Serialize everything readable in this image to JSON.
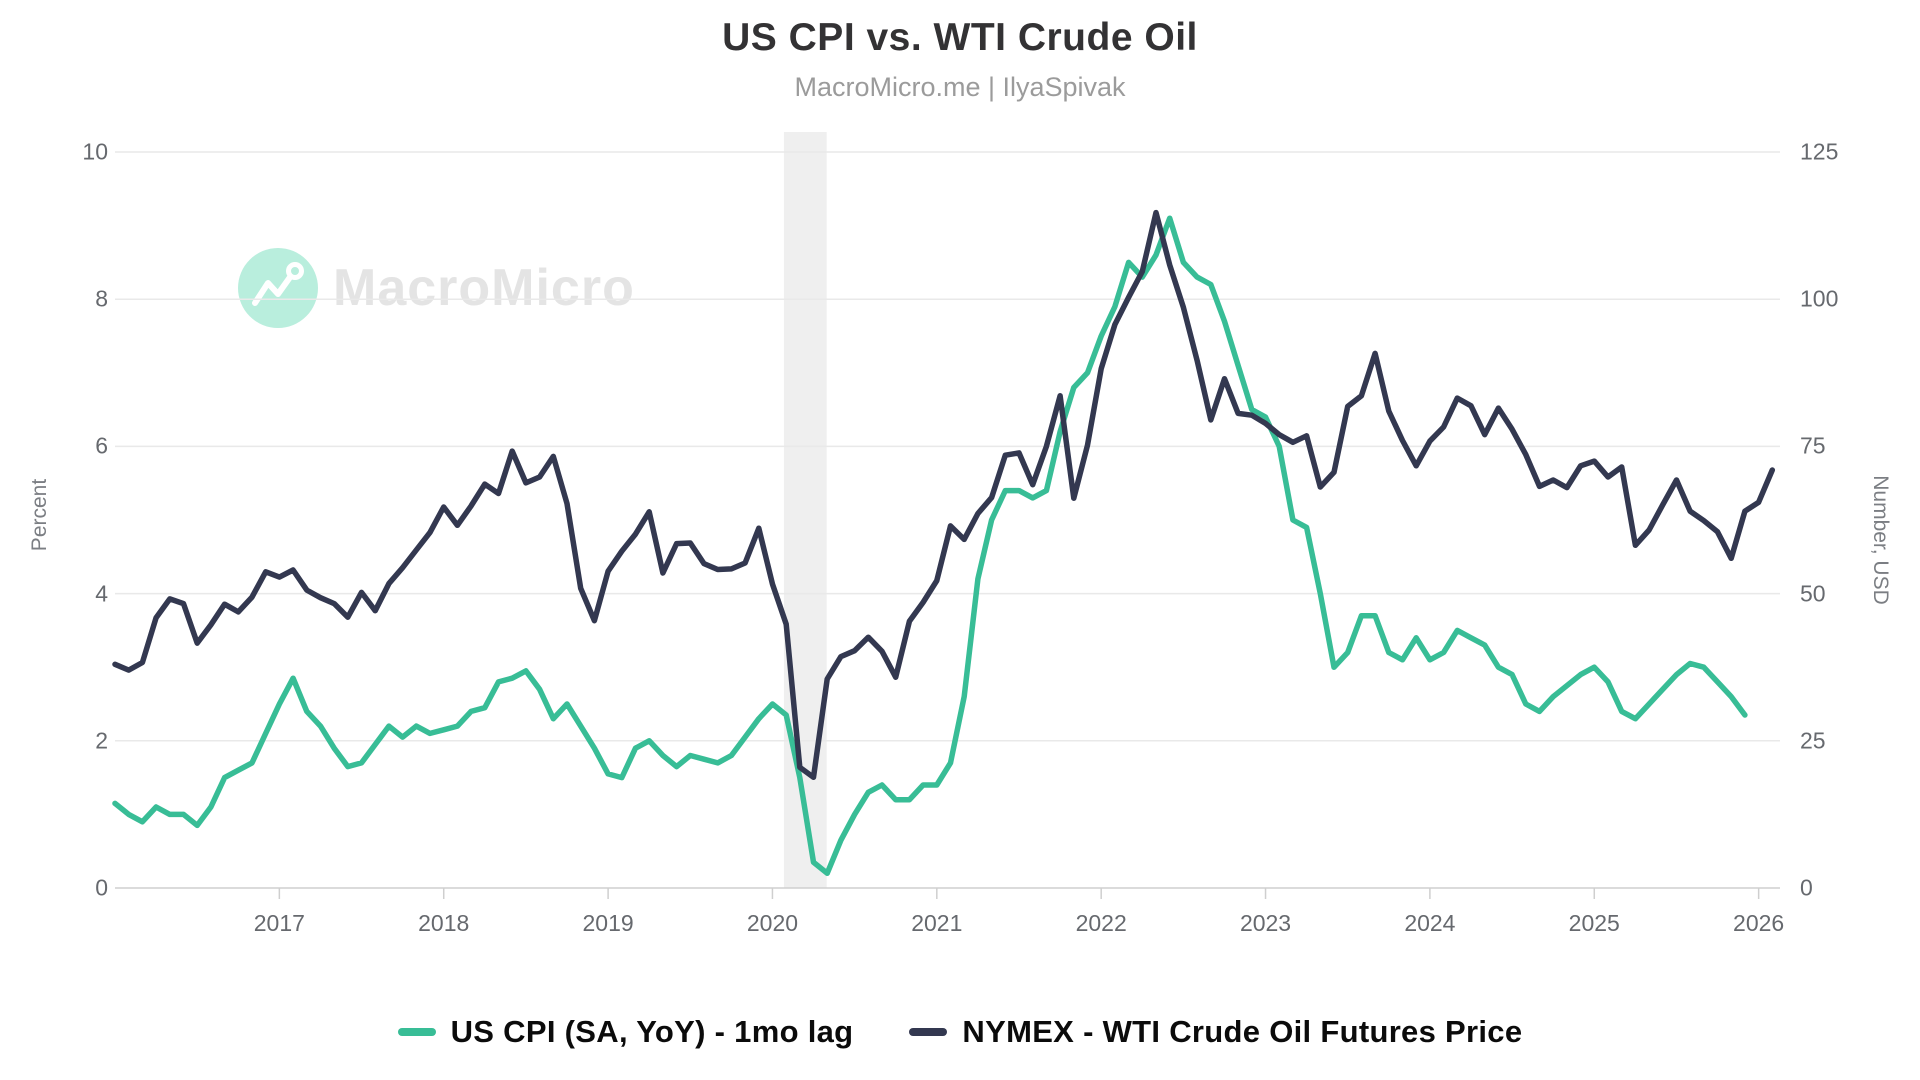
{
  "watermark": {
    "text": "MacroMicro",
    "icon": "macromicro-logo-icon",
    "circle_color": "#b9eedd",
    "glyph_color": "#ffffff",
    "text_color": "#e4e4e4"
  },
  "chart_data": {
    "type": "line",
    "title": "US CPI vs. WTI Crude Oil",
    "subtitle": "MacroMicro.me | IlyaSpivak",
    "grid": "horizontal-only",
    "legend_position": "bottom-center",
    "background_color": "#ffffff",
    "gridline_color": "#e9e9e9",
    "baseline_color": "#cfcfcf",
    "tick_text_color": "#66696e",
    "x_range": [
      2016.0,
      2026.13
    ],
    "x_ticks": [
      {
        "label": "2017",
        "value": 2017
      },
      {
        "label": "2018",
        "value": 2018
      },
      {
        "label": "2019",
        "value": 2019
      },
      {
        "label": "2020",
        "value": 2020
      },
      {
        "label": "2021",
        "value": 2021
      },
      {
        "label": "2022",
        "value": 2022
      },
      {
        "label": "2023",
        "value": 2023
      },
      {
        "label": "2024",
        "value": 2024
      },
      {
        "label": "2025",
        "value": 2025
      },
      {
        "label": "2026",
        "value": 2026
      }
    ],
    "left_axis": {
      "title": "Percent",
      "min": 0,
      "max": 10,
      "ticks": [
        {
          "label": "0",
          "value": 0
        },
        {
          "label": "2",
          "value": 2
        },
        {
          "label": "4",
          "value": 4
        },
        {
          "label": "6",
          "value": 6
        },
        {
          "label": "8",
          "value": 8
        },
        {
          "label": "10",
          "value": 10
        }
      ]
    },
    "right_axis": {
      "title": "Number, USD",
      "min": 0,
      "max": 125,
      "ticks": [
        {
          "label": "0",
          "value": 0
        },
        {
          "label": "25",
          "value": 25
        },
        {
          "label": "50",
          "value": 50
        },
        {
          "label": "75",
          "value": 75
        },
        {
          "label": "100",
          "value": 100
        },
        {
          "label": "125",
          "value": 125
        }
      ]
    },
    "recession_band": {
      "start": 2020.07,
      "end": 2020.33,
      "color": "#efefef"
    },
    "series": [
      {
        "name": "US CPI (SA, YoY) - 1mo lag",
        "color": "#38bd96",
        "axis": "left",
        "unit": "%",
        "x_start": 2016.0,
        "x_step": 0.08333333,
        "values": [
          1.15,
          1.0,
          0.9,
          1.1,
          1.0,
          1.0,
          0.85,
          1.1,
          1.5,
          1.6,
          1.7,
          2.1,
          2.5,
          2.85,
          2.4,
          2.2,
          1.9,
          1.65,
          1.7,
          1.95,
          2.2,
          2.05,
          2.2,
          2.1,
          2.15,
          2.2,
          2.4,
          2.45,
          2.8,
          2.85,
          2.95,
          2.7,
          2.3,
          2.5,
          2.2,
          1.9,
          1.55,
          1.5,
          1.9,
          2.0,
          1.8,
          1.65,
          1.8,
          1.75,
          1.7,
          1.8,
          2.05,
          2.3,
          2.5,
          2.35,
          1.5,
          0.35,
          0.2,
          0.65,
          1.0,
          1.3,
          1.4,
          1.2,
          1.2,
          1.4,
          1.4,
          1.7,
          2.6,
          4.2,
          5.0,
          5.4,
          5.4,
          5.3,
          5.4,
          6.2,
          6.8,
          7.0,
          7.5,
          7.9,
          8.5,
          8.3,
          8.6,
          9.1,
          8.5,
          8.3,
          8.2,
          7.7,
          7.1,
          6.5,
          6.4,
          6.0,
          5.0,
          4.9,
          4.0,
          3.0,
          3.2,
          3.7,
          3.7,
          3.2,
          3.1,
          3.4,
          3.1,
          3.2,
          3.5,
          3.4,
          3.3,
          3.0,
          2.9,
          2.5,
          2.4,
          2.6,
          2.75,
          2.9,
          3.0,
          2.8,
          2.4,
          2.3,
          2.5,
          2.7,
          2.9,
          3.05,
          3.0,
          2.8,
          2.6,
          2.35
        ]
      },
      {
        "name": "NYMEX - WTI Crude Oil Futures Price",
        "color": "#333850",
        "axis": "right",
        "unit": "USD",
        "x_start": 2016.0,
        "x_step": 0.08333333,
        "values": [
          38.0,
          37.0,
          38.3,
          45.9,
          49.1,
          48.3,
          41.6,
          44.7,
          48.2,
          46.9,
          49.4,
          53.7,
          52.8,
          54.0,
          50.6,
          49.3,
          48.3,
          46.0,
          50.2,
          47.1,
          51.7,
          54.4,
          57.4,
          60.4,
          64.7,
          61.6,
          64.9,
          68.6,
          67.0,
          74.2,
          68.8,
          69.8,
          73.3,
          65.3,
          50.9,
          45.4,
          53.8,
          57.2,
          60.1,
          63.9,
          53.5,
          58.5,
          58.6,
          55.1,
          54.1,
          54.2,
          55.2,
          61.1,
          51.6,
          44.8,
          20.5,
          18.8,
          35.5,
          39.3,
          40.3,
          42.6,
          40.2,
          35.8,
          45.3,
          48.5,
          52.2,
          61.5,
          59.2,
          63.6,
          66.3,
          73.5,
          73.9,
          68.5,
          75.0,
          83.6,
          66.2,
          75.2,
          88.2,
          95.7,
          100.3,
          104.7,
          114.7,
          105.8,
          98.6,
          89.6,
          79.5,
          86.5,
          80.6,
          80.3,
          78.9,
          77.0,
          75.7,
          76.8,
          68.1,
          70.6,
          81.8,
          83.6,
          90.8,
          81.0,
          76.0,
          71.7,
          75.9,
          78.3,
          83.2,
          81.9,
          77.0,
          81.5,
          77.9,
          73.6,
          68.2,
          69.3,
          68.0,
          71.7,
          72.5,
          69.8,
          71.5,
          58.2,
          60.8,
          65.1,
          69.3,
          64.0,
          62.4,
          60.5,
          56.0,
          64.0,
          65.5,
          71.0
        ]
      }
    ]
  }
}
